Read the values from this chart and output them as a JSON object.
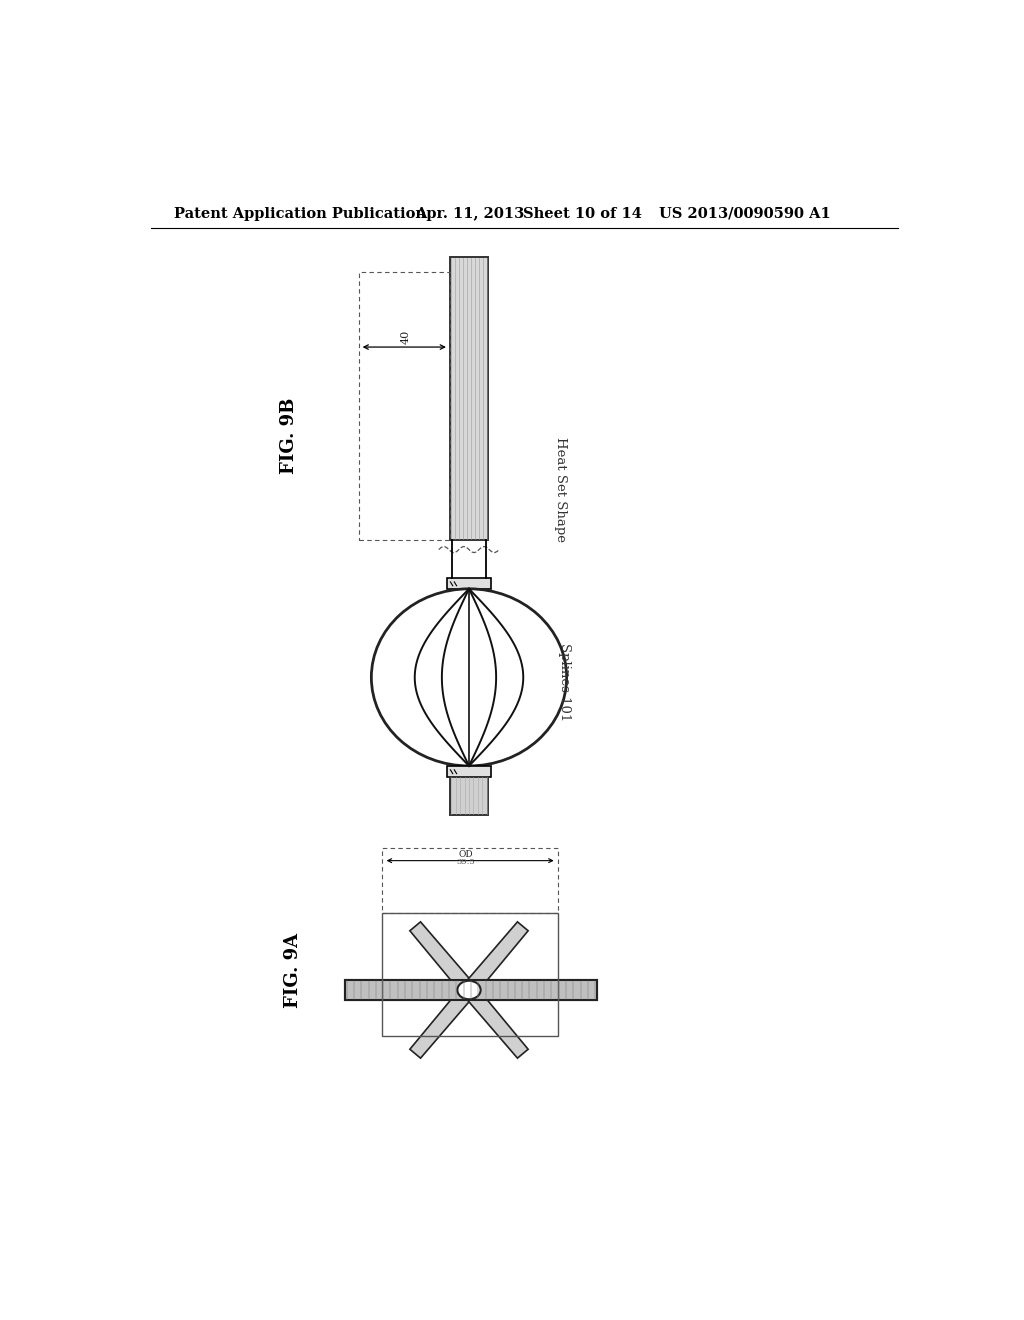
{
  "bg_color": "#ffffff",
  "header_text": "Patent Application Publication",
  "header_date": "Apr. 11, 2013",
  "header_sheet": "Sheet 10 of 14",
  "header_patent": "US 2013/0090590 A1",
  "fig9b_label": "FIG. 9B",
  "fig9a_label": "FIG. 9A",
  "label_heat_set": "Heat Set Shape",
  "label_splines": "Splines 101",
  "label_40": "40"
}
